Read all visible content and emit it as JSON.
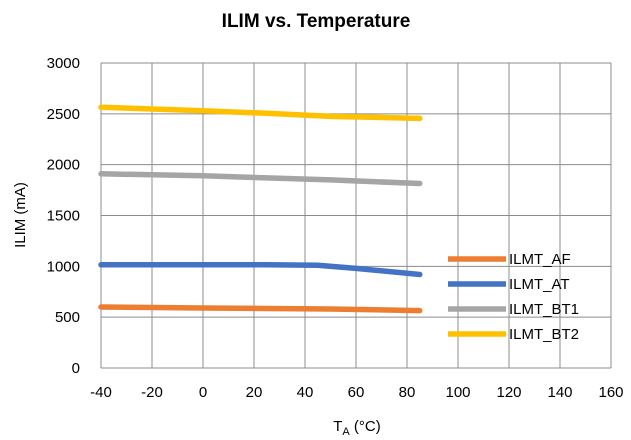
{
  "chart_data": {
    "type": "line",
    "title": "ILIM vs. Temperature",
    "xlabel": {
      "base": "T",
      "sub": "A",
      "rest": " (°C)"
    },
    "ylabel": "ILIM (mA)",
    "xlim": [
      -40,
      160
    ],
    "ylim": [
      0,
      3000
    ],
    "xticks": [
      -40,
      -20,
      0,
      20,
      40,
      60,
      80,
      100,
      120,
      140,
      160
    ],
    "yticks": [
      0,
      500,
      1000,
      1500,
      2000,
      2500,
      3000
    ],
    "grid": true,
    "legend_position": "bottom-right",
    "series": [
      {
        "name": "ILMT_AF",
        "color": "#ED7D31",
        "x": [
          -40,
          0,
          25,
          50,
          85
        ],
        "y": [
          600,
          590,
          585,
          580,
          565
        ]
      },
      {
        "name": "ILMT_AT",
        "color": "#4472C4",
        "x": [
          -40,
          0,
          25,
          45,
          60,
          85
        ],
        "y": [
          1015,
          1015,
          1015,
          1010,
          980,
          920
        ]
      },
      {
        "name": "ILMT_BT1",
        "color": "#A5A5A5",
        "x": [
          -40,
          0,
          25,
          50,
          85
        ],
        "y": [
          1910,
          1890,
          1870,
          1850,
          1815
        ]
      },
      {
        "name": "ILMT_BT2",
        "color": "#FFC000",
        "x": [
          -40,
          0,
          25,
          50,
          85
        ],
        "y": [
          2565,
          2530,
          2505,
          2475,
          2455
        ]
      }
    ]
  }
}
